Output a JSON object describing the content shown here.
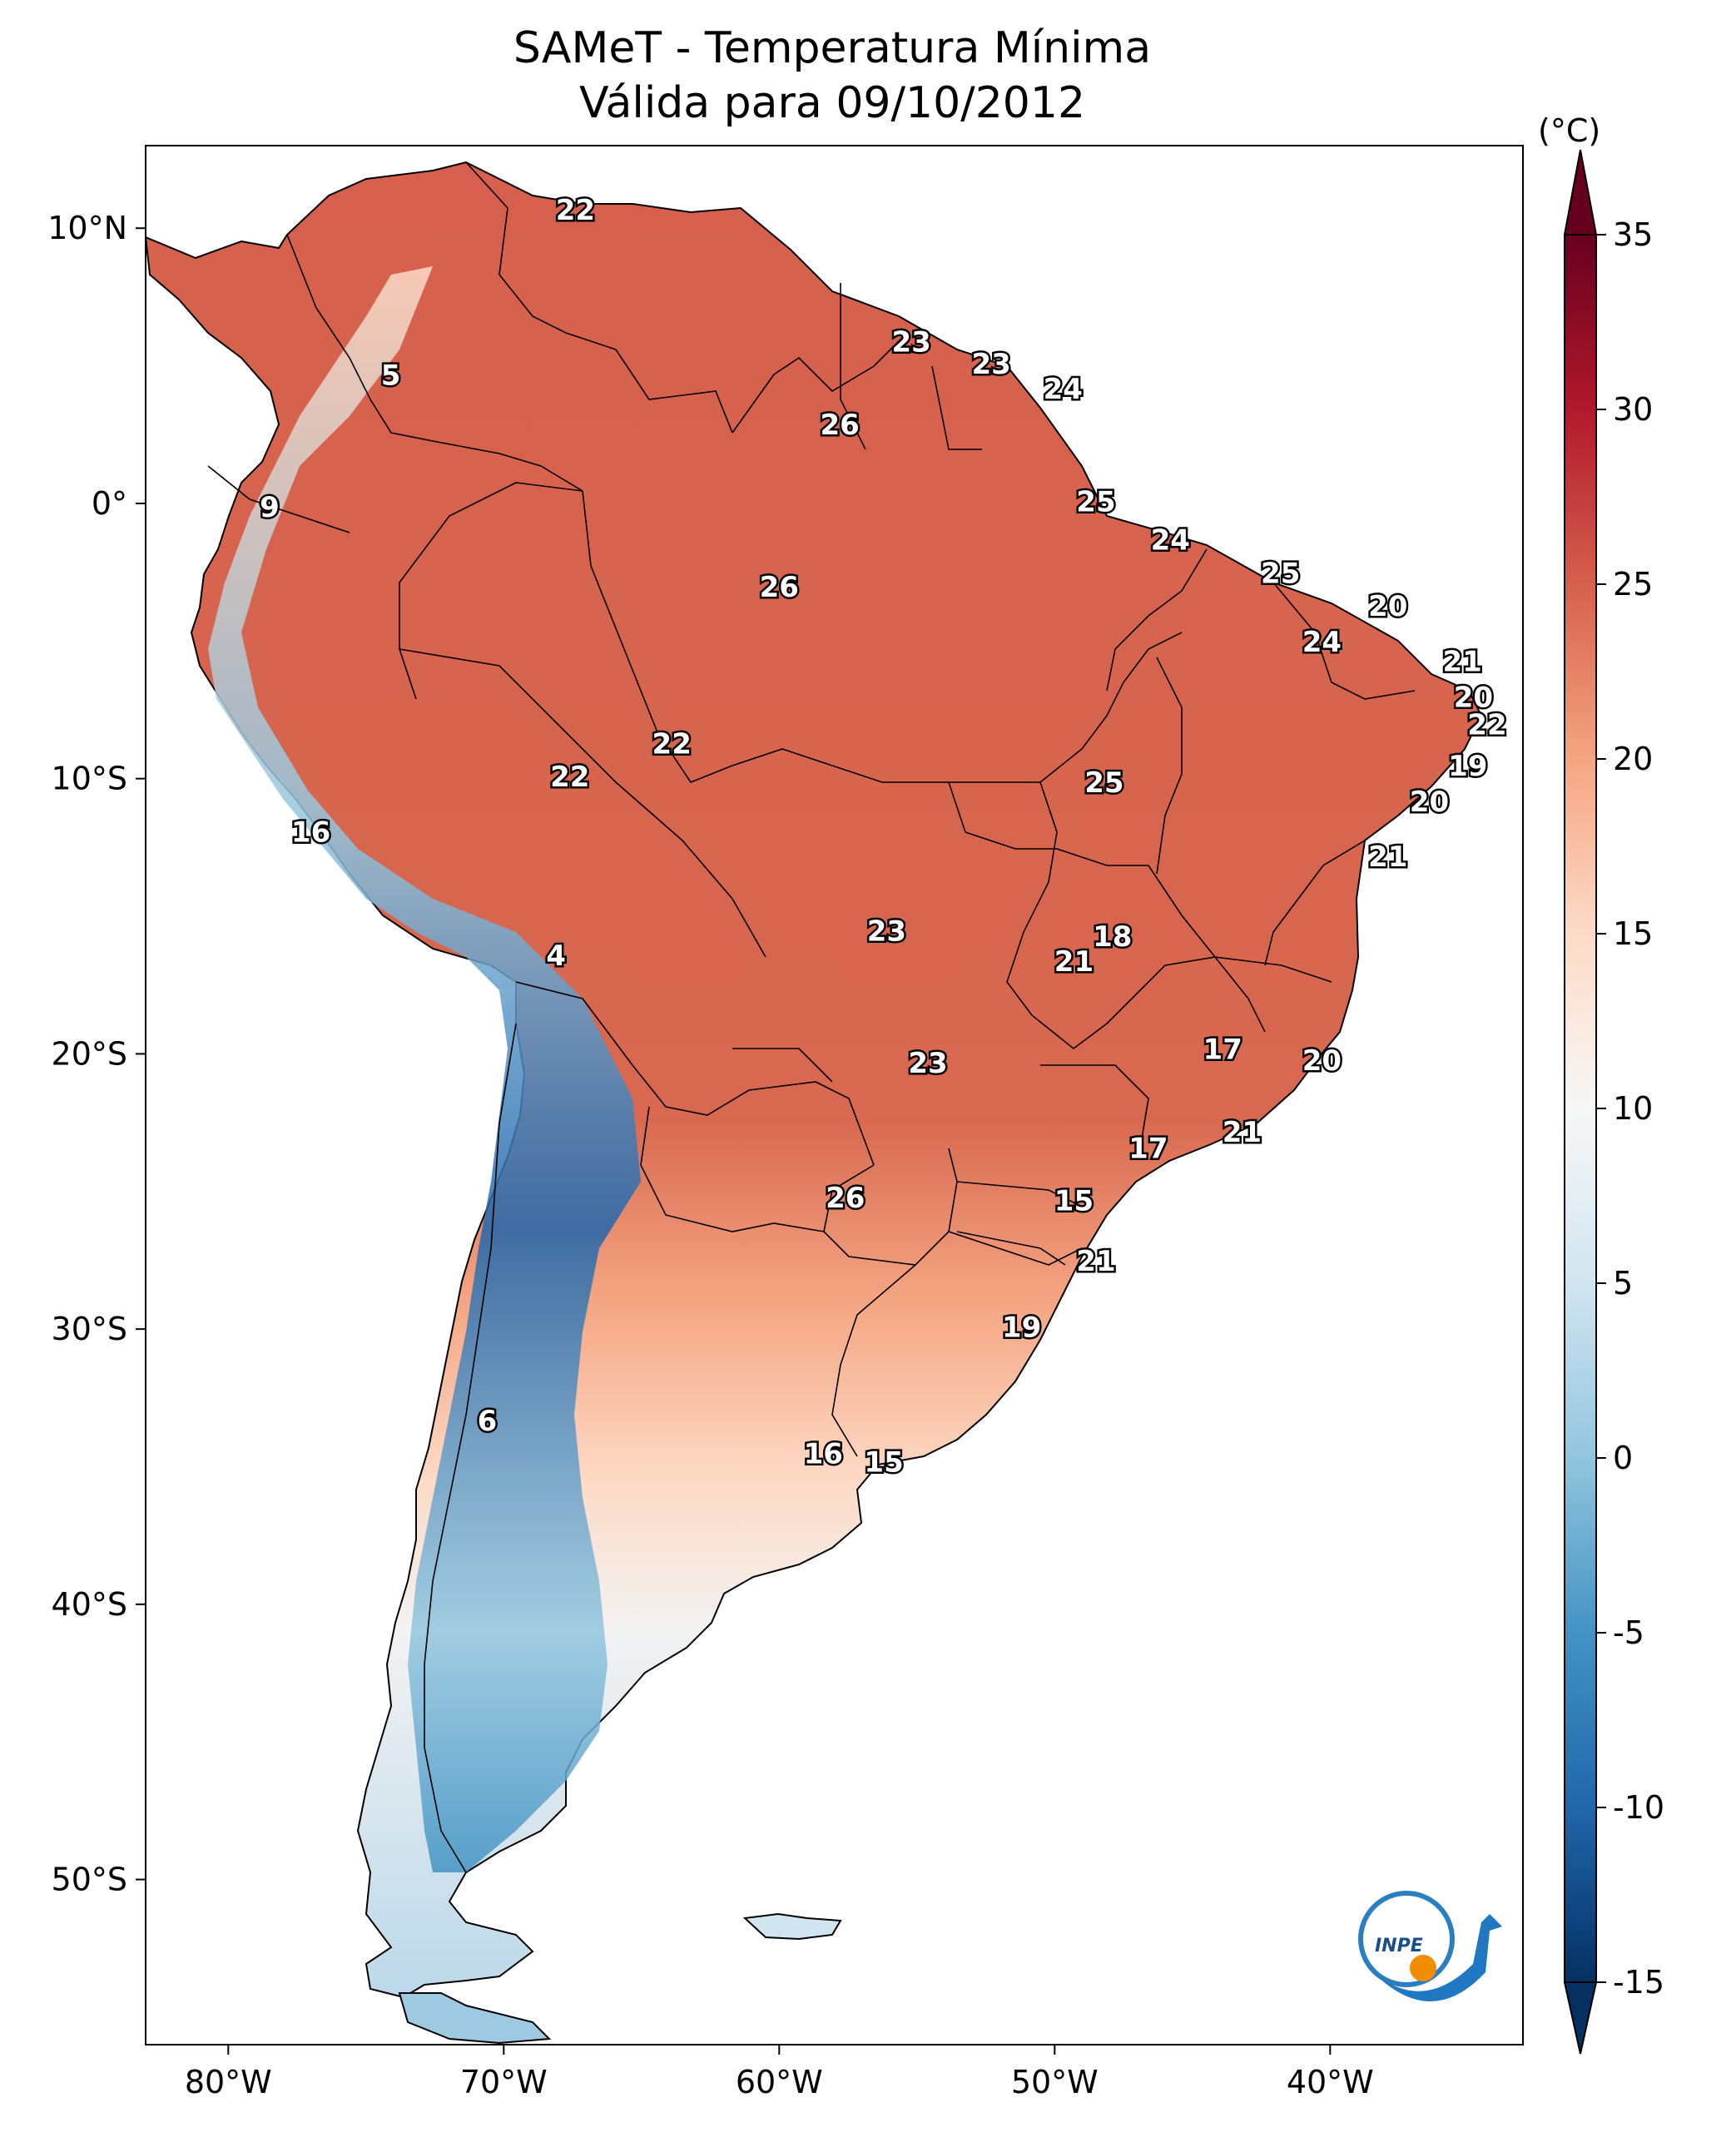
{
  "title_line1": "SAMeT - Temperatura Mínima",
  "title_line2": "Válida para 09/10/2012",
  "colorbar": {
    "unit": "(°C)",
    "min": -15,
    "max": 35,
    "ticks": [
      "35",
      "30",
      "25",
      "20",
      "15",
      "10",
      "5",
      "0",
      "-5",
      "-10",
      "-15"
    ],
    "tick_values": [
      35,
      30,
      25,
      20,
      15,
      10,
      5,
      0,
      -5,
      -10,
      -15
    ],
    "colors": [
      "#053061",
      "#2166ac",
      "#4393c3",
      "#92c5de",
      "#d1e5f0",
      "#f7f7f7",
      "#fddbc7",
      "#f4a582",
      "#d6604d",
      "#b2182b",
      "#67001f"
    ]
  },
  "axes": {
    "lon_labels": [
      "80°W",
      "70°W",
      "60°W",
      "50°W",
      "40°W"
    ],
    "lon_values": [
      -80,
      -70,
      -60,
      -50,
      -40
    ],
    "lat_labels": [
      "10°N",
      "0°",
      "10°S",
      "20°S",
      "30°S",
      "40°S",
      "50°S"
    ],
    "lat_values": [
      10,
      0,
      -10,
      -20,
      -30,
      -40,
      -50
    ],
    "lon_range": [
      -83,
      -33
    ],
    "lat_range": [
      -56,
      13
    ]
  },
  "stations": [
    {
      "t": "22",
      "lon": -67.4,
      "lat": 10.6
    },
    {
      "t": "5",
      "lon": -74.1,
      "lat": 4.6
    },
    {
      "t": "23",
      "lon": -55.2,
      "lat": 5.8
    },
    {
      "t": "23",
      "lon": -52.3,
      "lat": 5.0
    },
    {
      "t": "24",
      "lon": -49.7,
      "lat": 4.1
    },
    {
      "t": "26",
      "lon": -57.8,
      "lat": 2.8
    },
    {
      "t": "9",
      "lon": -78.5,
      "lat": -0.2
    },
    {
      "t": "25",
      "lon": -48.5,
      "lat": 0.0
    },
    {
      "t": "24",
      "lon": -45.8,
      "lat": -1.4
    },
    {
      "t": "25",
      "lon": -41.8,
      "lat": -2.6
    },
    {
      "t": "26",
      "lon": -60.0,
      "lat": -3.1
    },
    {
      "t": "20",
      "lon": -37.9,
      "lat": -3.8
    },
    {
      "t": "24",
      "lon": -40.3,
      "lat": -5.1
    },
    {
      "t": "21",
      "lon": -35.2,
      "lat": -5.8
    },
    {
      "t": "20",
      "lon": -34.8,
      "lat": -7.1
    },
    {
      "t": "22",
      "lon": -34.3,
      "lat": -8.1
    },
    {
      "t": "22",
      "lon": -63.9,
      "lat": -8.8
    },
    {
      "t": "19",
      "lon": -35.0,
      "lat": -9.6
    },
    {
      "t": "22",
      "lon": -67.6,
      "lat": -10.0
    },
    {
      "t": "25",
      "lon": -48.2,
      "lat": -10.2
    },
    {
      "t": "20",
      "lon": -36.4,
      "lat": -10.9
    },
    {
      "t": "16",
      "lon": -77.0,
      "lat": -12.0
    },
    {
      "t": "21",
      "lon": -37.9,
      "lat": -12.9
    },
    {
      "t": "23",
      "lon": -56.1,
      "lat": -15.6
    },
    {
      "t": "18",
      "lon": -47.9,
      "lat": -15.8
    },
    {
      "t": "4",
      "lon": -68.1,
      "lat": -16.5
    },
    {
      "t": "21",
      "lon": -49.3,
      "lat": -16.7
    },
    {
      "t": "17",
      "lon": -43.9,
      "lat": -19.9
    },
    {
      "t": "20",
      "lon": -40.3,
      "lat": -20.3
    },
    {
      "t": "23",
      "lon": -54.6,
      "lat": -20.4
    },
    {
      "t": "21",
      "lon": -43.2,
      "lat": -22.9
    },
    {
      "t": "17",
      "lon": -46.6,
      "lat": -23.5
    },
    {
      "t": "26",
      "lon": -57.6,
      "lat": -25.3
    },
    {
      "t": "15",
      "lon": -49.3,
      "lat": -25.4
    },
    {
      "t": "21",
      "lon": -48.5,
      "lat": -27.6
    },
    {
      "t": "19",
      "lon": -51.2,
      "lat": -30.0
    },
    {
      "t": "6",
      "lon": -70.6,
      "lat": -33.4
    },
    {
      "t": "16",
      "lon": -58.4,
      "lat": -34.6
    },
    {
      "t": "15",
      "lon": -56.2,
      "lat": -34.9
    }
  ],
  "logo_text": "INPE"
}
